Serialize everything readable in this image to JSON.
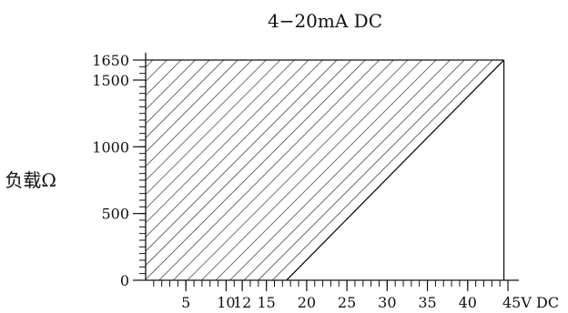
{
  "chart_data": {
    "type": "area",
    "title": "4−20mA DC",
    "ylabel": "负载Ω",
    "xlabel": "",
    "xlim": [
      0,
      45
    ],
    "ylim": [
      0,
      1650
    ],
    "x_ticks": [
      {
        "value": 5,
        "label": "5"
      },
      {
        "value": 10,
        "label": "10"
      },
      {
        "value": 12,
        "label": "12"
      },
      {
        "value": 15,
        "label": "15"
      },
      {
        "value": 20,
        "label": "20"
      },
      {
        "value": 25,
        "label": "25"
      },
      {
        "value": 30,
        "label": "30"
      },
      {
        "value": 35,
        "label": "35"
      },
      {
        "value": 40,
        "label": "40"
      },
      {
        "value": 45,
        "label": "45V DC"
      }
    ],
    "y_ticks": [
      {
        "value": 0,
        "label": "0"
      },
      {
        "value": 500,
        "label": "500"
      },
      {
        "value": 1000,
        "label": "1000"
      },
      {
        "value": 1500,
        "label": "1500"
      },
      {
        "value": 1650,
        "label": "1650"
      }
    ],
    "x_minor_step": 1,
    "y_minor_step": 50,
    "series": [
      {
        "x": [
          17.5,
          44.5
        ],
        "y": [
          0,
          1650
        ]
      }
    ],
    "region": {
      "fill": "hatched",
      "polygon": [
        [
          0,
          0
        ],
        [
          17.5,
          0
        ],
        [
          44.5,
          1650
        ],
        [
          0,
          1650
        ]
      ]
    },
    "grid": false,
    "colors": {
      "line": "#111111",
      "hatch": "#222222",
      "background": "#ffffff"
    }
  }
}
